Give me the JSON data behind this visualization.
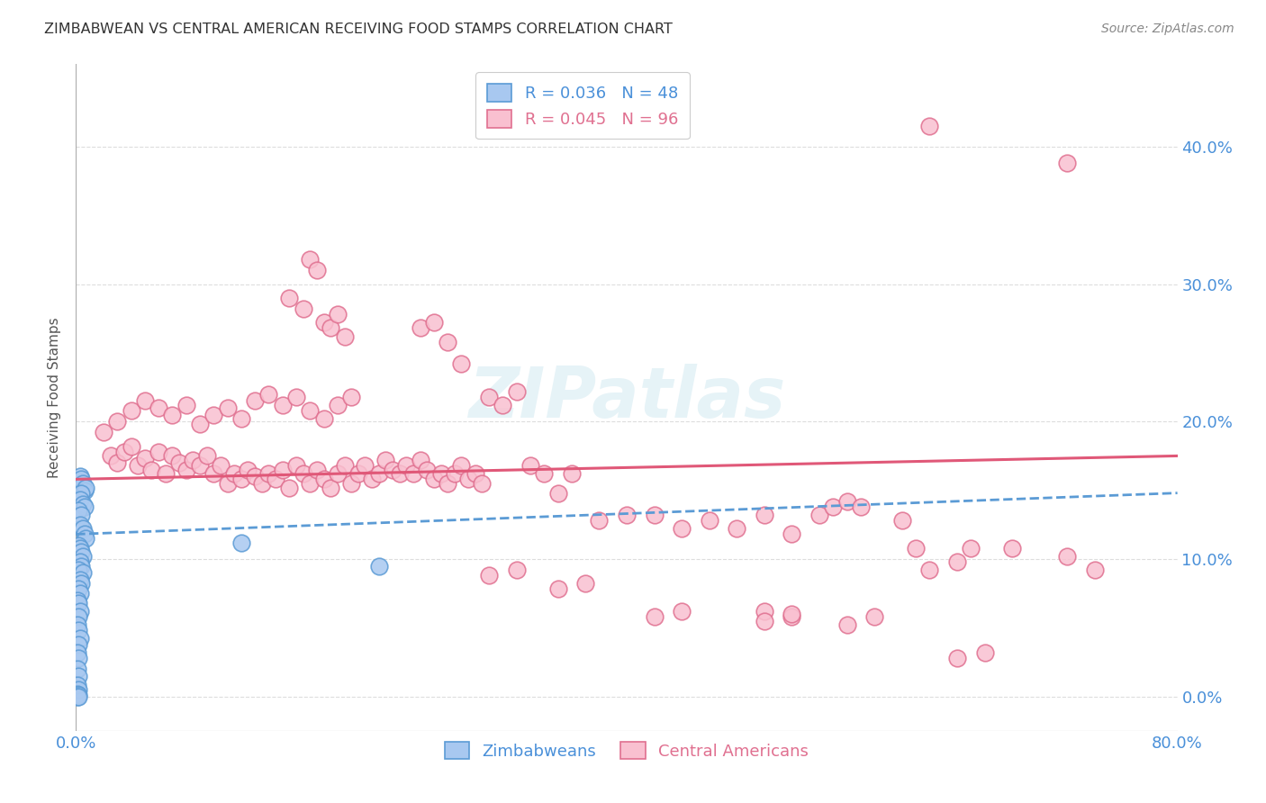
{
  "title": "ZIMBABWEAN VS CENTRAL AMERICAN RECEIVING FOOD STAMPS CORRELATION CHART",
  "source": "Source: ZipAtlas.com",
  "ylabel": "Receiving Food Stamps",
  "zipatlas_watermark": "ZIPatlas",
  "blue_color": "#a8c8f0",
  "blue_edge_color": "#5b9bd5",
  "pink_color": "#f9c0d0",
  "pink_edge_color": "#e07090",
  "pink_line_color": "#e05878",
  "blue_line_color": "#5b9bd5",
  "title_color": "#333333",
  "axis_label_color": "#4a90d9",
  "grid_color": "#dddddd",
  "background_color": "#ffffff",
  "xlim": [
    0.0,
    0.8
  ],
  "ylim": [
    -0.025,
    0.46
  ],
  "ytick_values": [
    0.0,
    0.1,
    0.2,
    0.3,
    0.4
  ],
  "ytick_labels": [
    "0.0%",
    "10.0%",
    "20.0%",
    "30.0%",
    "40.0%"
  ],
  "xtick_values": [
    0.0,
    0.2,
    0.4,
    0.6,
    0.8
  ],
  "xtick_labels": [
    "0.0%",
    "",
    "",
    "",
    "80.0%"
  ],
  "zimbabwean_points": [
    [
      0.002,
      0.155
    ],
    [
      0.003,
      0.16
    ],
    [
      0.004,
      0.158
    ],
    [
      0.005,
      0.155
    ],
    [
      0.006,
      0.15
    ],
    [
      0.007,
      0.152
    ],
    [
      0.004,
      0.148
    ],
    [
      0.003,
      0.143
    ],
    [
      0.005,
      0.14
    ],
    [
      0.006,
      0.138
    ],
    [
      0.002,
      0.135
    ],
    [
      0.004,
      0.132
    ],
    [
      0.003,
      0.125
    ],
    [
      0.005,
      0.122
    ],
    [
      0.006,
      0.118
    ],
    [
      0.007,
      0.115
    ],
    [
      0.002,
      0.11
    ],
    [
      0.003,
      0.108
    ],
    [
      0.004,
      0.105
    ],
    [
      0.005,
      0.102
    ],
    [
      0.003,
      0.098
    ],
    [
      0.004,
      0.095
    ],
    [
      0.002,
      0.092
    ],
    [
      0.005,
      0.09
    ],
    [
      0.003,
      0.085
    ],
    [
      0.004,
      0.082
    ],
    [
      0.002,
      0.078
    ],
    [
      0.003,
      0.075
    ],
    [
      0.001,
      0.07
    ],
    [
      0.002,
      0.068
    ],
    [
      0.003,
      0.062
    ],
    [
      0.002,
      0.058
    ],
    [
      0.001,
      0.052
    ],
    [
      0.002,
      0.048
    ],
    [
      0.003,
      0.042
    ],
    [
      0.002,
      0.038
    ],
    [
      0.001,
      0.032
    ],
    [
      0.002,
      0.028
    ],
    [
      0.001,
      0.02
    ],
    [
      0.002,
      0.015
    ],
    [
      0.001,
      0.008
    ],
    [
      0.002,
      0.005
    ],
    [
      0.001,
      0.002
    ],
    [
      0.002,
      0.001
    ],
    [
      0.001,
      0.0
    ],
    [
      0.002,
      0.0
    ],
    [
      0.12,
      0.112
    ],
    [
      0.22,
      0.095
    ]
  ],
  "central_american_points": [
    [
      0.025,
      0.175
    ],
    [
      0.03,
      0.17
    ],
    [
      0.035,
      0.178
    ],
    [
      0.04,
      0.182
    ],
    [
      0.045,
      0.168
    ],
    [
      0.05,
      0.173
    ],
    [
      0.055,
      0.165
    ],
    [
      0.06,
      0.178
    ],
    [
      0.065,
      0.162
    ],
    [
      0.07,
      0.175
    ],
    [
      0.075,
      0.17
    ],
    [
      0.08,
      0.165
    ],
    [
      0.085,
      0.172
    ],
    [
      0.09,
      0.168
    ],
    [
      0.095,
      0.175
    ],
    [
      0.1,
      0.162
    ],
    [
      0.105,
      0.168
    ],
    [
      0.11,
      0.155
    ],
    [
      0.115,
      0.162
    ],
    [
      0.12,
      0.158
    ],
    [
      0.125,
      0.165
    ],
    [
      0.13,
      0.16
    ],
    [
      0.135,
      0.155
    ],
    [
      0.14,
      0.162
    ],
    [
      0.145,
      0.158
    ],
    [
      0.15,
      0.165
    ],
    [
      0.155,
      0.152
    ],
    [
      0.16,
      0.168
    ],
    [
      0.165,
      0.162
    ],
    [
      0.17,
      0.155
    ],
    [
      0.175,
      0.165
    ],
    [
      0.18,
      0.158
    ],
    [
      0.185,
      0.152
    ],
    [
      0.19,
      0.162
    ],
    [
      0.195,
      0.168
    ],
    [
      0.2,
      0.155
    ],
    [
      0.205,
      0.162
    ],
    [
      0.21,
      0.168
    ],
    [
      0.215,
      0.158
    ],
    [
      0.22,
      0.162
    ],
    [
      0.225,
      0.172
    ],
    [
      0.23,
      0.165
    ],
    [
      0.235,
      0.162
    ],
    [
      0.24,
      0.168
    ],
    [
      0.245,
      0.162
    ],
    [
      0.25,
      0.172
    ],
    [
      0.255,
      0.165
    ],
    [
      0.26,
      0.158
    ],
    [
      0.265,
      0.162
    ],
    [
      0.27,
      0.155
    ],
    [
      0.275,
      0.162
    ],
    [
      0.28,
      0.168
    ],
    [
      0.285,
      0.158
    ],
    [
      0.29,
      0.162
    ],
    [
      0.295,
      0.155
    ],
    [
      0.02,
      0.192
    ],
    [
      0.03,
      0.2
    ],
    [
      0.04,
      0.208
    ],
    [
      0.05,
      0.215
    ],
    [
      0.06,
      0.21
    ],
    [
      0.07,
      0.205
    ],
    [
      0.08,
      0.212
    ],
    [
      0.09,
      0.198
    ],
    [
      0.1,
      0.205
    ],
    [
      0.11,
      0.21
    ],
    [
      0.12,
      0.202
    ],
    [
      0.13,
      0.215
    ],
    [
      0.14,
      0.22
    ],
    [
      0.15,
      0.212
    ],
    [
      0.16,
      0.218
    ],
    [
      0.17,
      0.208
    ],
    [
      0.18,
      0.202
    ],
    [
      0.19,
      0.212
    ],
    [
      0.2,
      0.218
    ],
    [
      0.155,
      0.29
    ],
    [
      0.165,
      0.282
    ],
    [
      0.17,
      0.318
    ],
    [
      0.175,
      0.31
    ],
    [
      0.18,
      0.272
    ],
    [
      0.185,
      0.268
    ],
    [
      0.19,
      0.278
    ],
    [
      0.195,
      0.262
    ],
    [
      0.25,
      0.268
    ],
    [
      0.26,
      0.272
    ],
    [
      0.27,
      0.258
    ],
    [
      0.28,
      0.242
    ],
    [
      0.3,
      0.218
    ],
    [
      0.31,
      0.212
    ],
    [
      0.32,
      0.222
    ],
    [
      0.33,
      0.168
    ],
    [
      0.34,
      0.162
    ],
    [
      0.35,
      0.148
    ],
    [
      0.36,
      0.162
    ],
    [
      0.38,
      0.128
    ],
    [
      0.4,
      0.132
    ],
    [
      0.42,
      0.132
    ],
    [
      0.44,
      0.122
    ],
    [
      0.46,
      0.128
    ],
    [
      0.48,
      0.122
    ],
    [
      0.5,
      0.132
    ],
    [
      0.52,
      0.118
    ],
    [
      0.54,
      0.132
    ],
    [
      0.55,
      0.138
    ],
    [
      0.56,
      0.142
    ],
    [
      0.57,
      0.138
    ],
    [
      0.6,
      0.128
    ],
    [
      0.61,
      0.108
    ],
    [
      0.62,
      0.092
    ],
    [
      0.64,
      0.098
    ],
    [
      0.65,
      0.108
    ],
    [
      0.68,
      0.108
    ],
    [
      0.72,
      0.102
    ],
    [
      0.74,
      0.092
    ],
    [
      0.3,
      0.088
    ],
    [
      0.32,
      0.092
    ],
    [
      0.35,
      0.078
    ],
    [
      0.37,
      0.082
    ],
    [
      0.42,
      0.058
    ],
    [
      0.44,
      0.062
    ],
    [
      0.5,
      0.062
    ],
    [
      0.52,
      0.058
    ],
    [
      0.56,
      0.052
    ],
    [
      0.58,
      0.058
    ],
    [
      0.64,
      0.028
    ],
    [
      0.66,
      0.032
    ],
    [
      0.5,
      0.055
    ],
    [
      0.52,
      0.06
    ],
    [
      0.62,
      0.415
    ],
    [
      0.72,
      0.388
    ]
  ],
  "zim_trend_x": [
    0.0,
    0.8
  ],
  "zim_trend_y": [
    0.118,
    0.148
  ],
  "ca_trend_x": [
    0.0,
    0.8
  ],
  "ca_trend_y": [
    0.158,
    0.175
  ]
}
